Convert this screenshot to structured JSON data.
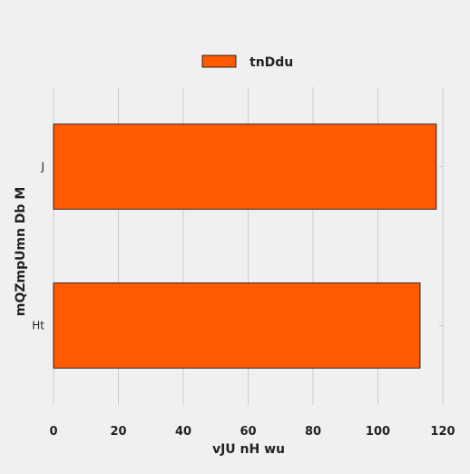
{
  "chart_data": {
    "type": "bar",
    "orientation": "horizontal",
    "categories": [
      "J",
      "Ht"
    ],
    "series": [
      {
        "name": "tnDdu",
        "values": [
          118,
          113
        ],
        "color": "#ff5a00"
      }
    ],
    "xlabel": "vJU nH wu",
    "ylabel": "mQZmpUmn Db M",
    "xlim": [
      0,
      120
    ],
    "xticks": [
      0,
      20,
      40,
      60,
      80,
      100,
      120
    ],
    "grid": "vertical",
    "legend_position": "top-center",
    "bar_edge_color": "#000000",
    "grid_color": "#cbcbcb",
    "background": "#f0f0f0"
  }
}
